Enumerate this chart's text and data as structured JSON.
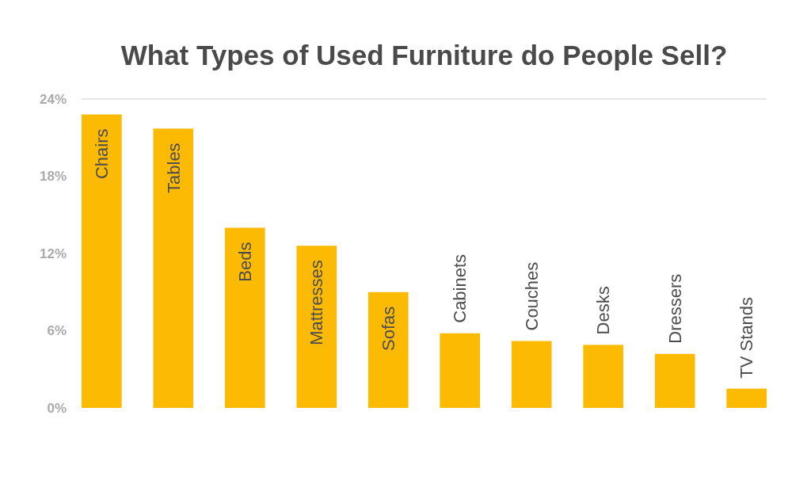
{
  "chart_data": {
    "type": "bar",
    "title": "What Types of Used Furniture do People Sell?",
    "categories": [
      "Chairs",
      "Tables",
      "Beds",
      "Mattresses",
      "Sofas",
      "Cabinets",
      "Couches",
      "Desks",
      "Dressers",
      "TV Stands"
    ],
    "values": [
      22.8,
      21.7,
      14.0,
      12.6,
      9.0,
      5.8,
      5.2,
      4.9,
      4.2,
      1.5
    ],
    "color": "#fcba03",
    "ylim": [
      0,
      24
    ],
    "yticks": [
      {
        "value": 0,
        "label": "0%"
      },
      {
        "value": 6,
        "label": "6%"
      },
      {
        "value": 12,
        "label": "12%"
      },
      {
        "value": 18,
        "label": "18%"
      },
      {
        "value": 24,
        "label": "24%"
      }
    ],
    "ref_lines": [
      {
        "axis": "y",
        "value": 24,
        "color": "#dddddd"
      }
    ]
  }
}
